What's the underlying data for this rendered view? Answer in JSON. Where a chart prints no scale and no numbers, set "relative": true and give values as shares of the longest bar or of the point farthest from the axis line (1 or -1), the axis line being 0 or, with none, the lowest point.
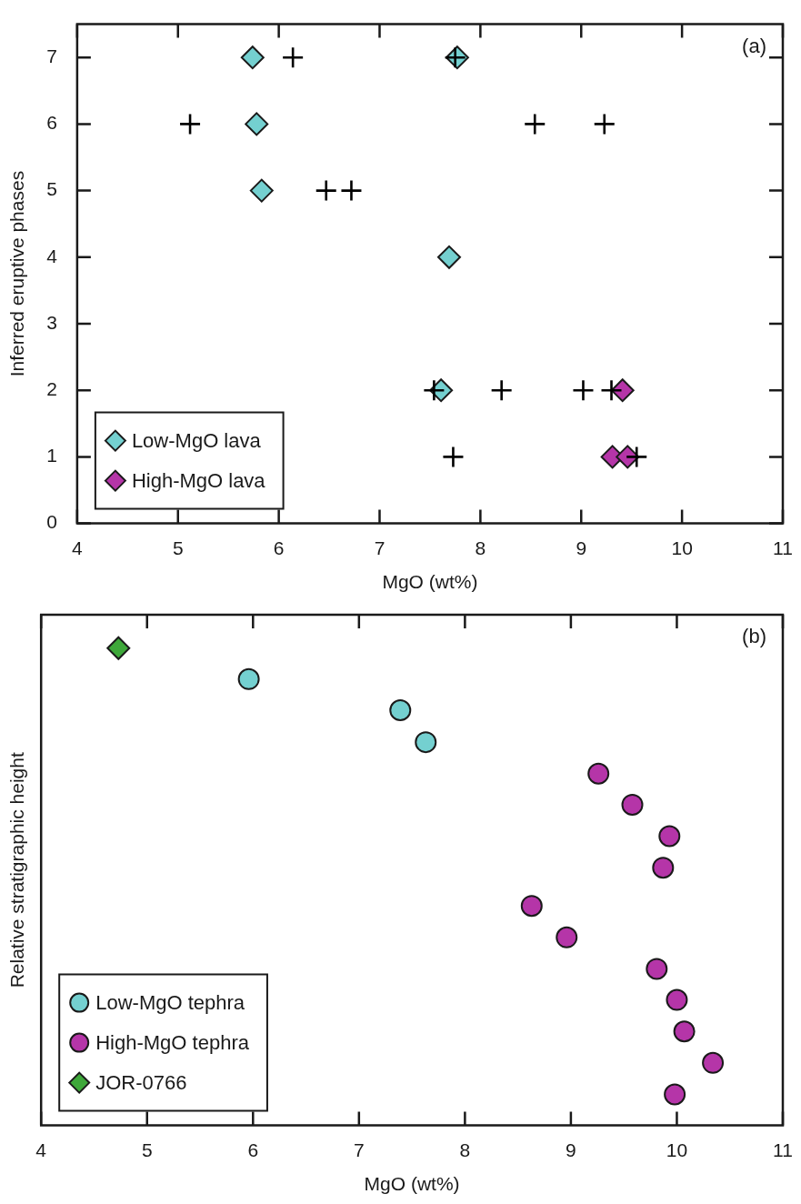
{
  "chart_data": [
    {
      "type": "scatter",
      "xlabel": "MgO (wt%)",
      "ylabel": "Inferred eruptive phases",
      "xlim": [
        4,
        11
      ],
      "xticks": [
        4,
        5,
        6,
        7,
        8,
        9,
        10,
        11
      ],
      "ylim": [
        0,
        7.5
      ],
      "yticks": [
        0,
        1,
        2,
        3,
        4,
        5,
        6,
        7
      ],
      "legend": "bottom left",
      "annotations": [
        "(a)"
      ],
      "series": [
        {
          "color": "#000000",
          "marker": "cross",
          "x": [
            6.14,
            7.75,
            5.12,
            8.54,
            9.23,
            6.47,
            6.72,
            7.54,
            8.21,
            9.02,
            9.3,
            7.73,
            9.55
          ],
          "values": [
            7,
            7,
            6,
            6,
            6,
            5,
            5,
            2,
            2,
            2,
            2,
            1,
            1
          ]
        },
        {
          "name": "Low-MgO lava",
          "color": "#74d0d0",
          "marker": "diamond",
          "x": [
            5.74,
            7.77,
            5.78,
            5.83,
            7.69,
            7.61
          ],
          "values": [
            7,
            7,
            6,
            5,
            4,
            2
          ]
        },
        {
          "name": "High-MgO lava",
          "color": "#b535a8",
          "marker": "diamond",
          "x": [
            9.41,
            9.31,
            9.46
          ],
          "values": [
            2,
            1,
            1
          ]
        }
      ]
    },
    {
      "type": "scatter",
      "xlabel": "MgO (wt%)",
      "ylabel": "Relative stratigraphic height",
      "xlim": [
        4,
        11
      ],
      "xticks": [
        4,
        5,
        6,
        7,
        8,
        9,
        10,
        11
      ],
      "relative": true,
      "tick_labels": "x",
      "legend": "bottom left",
      "annotations": [
        "(b)"
      ],
      "series": [
        {
          "name": "Low-MgO tephra",
          "color": "#74d0d0",
          "marker": "circle",
          "x": [
            5.96,
            7.39,
            7.63
          ],
          "values": [
            0.935,
            0.87,
            0.803
          ]
        },
        {
          "name": "High-MgO tephra",
          "color": "#b535a8",
          "marker": "circle",
          "x": [
            9.26,
            9.58,
            9.93,
            9.87,
            8.63,
            8.96,
            9.81,
            10.0,
            10.07,
            10.34,
            9.98
          ],
          "values": [
            0.737,
            0.672,
            0.606,
            0.54,
            0.46,
            0.394,
            0.328,
            0.263,
            0.197,
            0.131,
            0.065
          ]
        },
        {
          "name": "JOR-0766",
          "color": "#3ea83a",
          "marker": "diamond",
          "x": [
            4.73
          ],
          "values": [
            1.0
          ]
        }
      ]
    }
  ]
}
